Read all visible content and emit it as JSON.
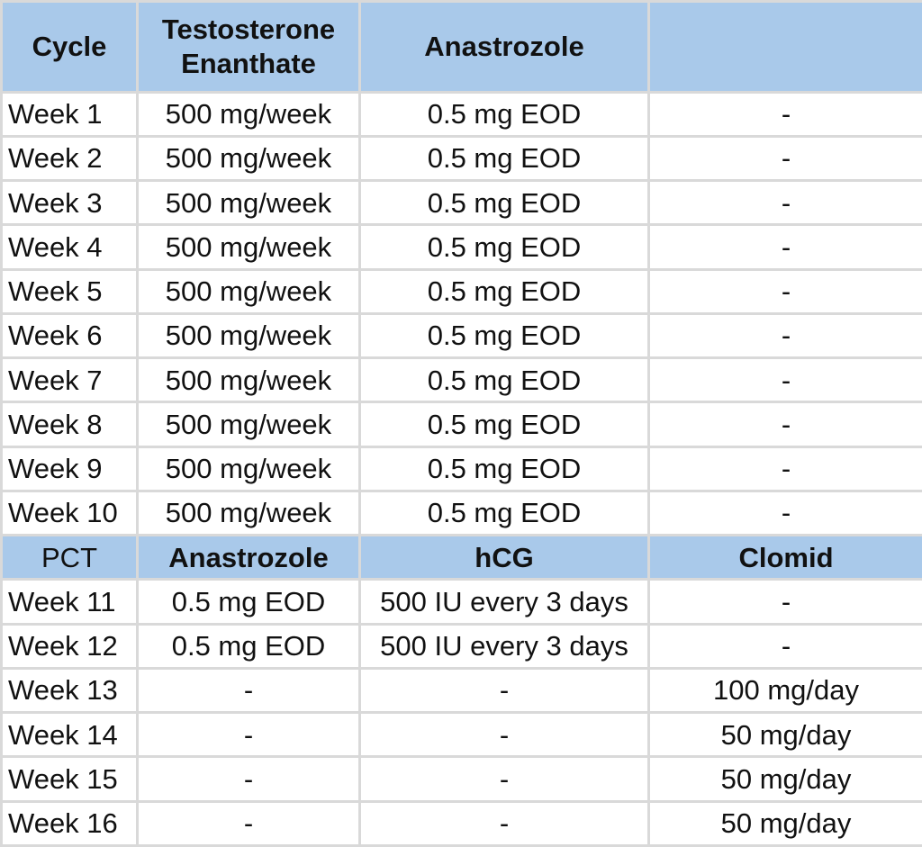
{
  "header": {
    "cycle": "Cycle",
    "col1": "Testosterone Enanthate",
    "col2": "Anastrozole",
    "col3": ""
  },
  "cycle_rows": [
    {
      "week": "Week 1",
      "test": "500 mg/week",
      "anastrozole": "0.5 mg EOD",
      "extra": "-"
    },
    {
      "week": "Week 2",
      "test": "500 mg/week",
      "anastrozole": "0.5 mg EOD",
      "extra": "-"
    },
    {
      "week": "Week 3",
      "test": "500 mg/week",
      "anastrozole": "0.5 mg EOD",
      "extra": "-"
    },
    {
      "week": "Week 4",
      "test": "500 mg/week",
      "anastrozole": "0.5 mg EOD",
      "extra": "-"
    },
    {
      "week": "Week 5",
      "test": "500 mg/week",
      "anastrozole": "0.5 mg EOD",
      "extra": "-"
    },
    {
      "week": "Week 6",
      "test": "500 mg/week",
      "anastrozole": "0.5 mg EOD",
      "extra": "-"
    },
    {
      "week": "Week 7",
      "test": "500 mg/week",
      "anastrozole": "0.5 mg EOD",
      "extra": "-"
    },
    {
      "week": "Week 8",
      "test": "500 mg/week",
      "anastrozole": "0.5 mg EOD",
      "extra": "-"
    },
    {
      "week": "Week 9",
      "test": "500 mg/week",
      "anastrozole": "0.5 mg EOD",
      "extra": "-"
    },
    {
      "week": "Week 10",
      "test": "500 mg/week",
      "anastrozole": "0.5 mg EOD",
      "extra": "-"
    }
  ],
  "pct_header": {
    "label": "PCT",
    "col1": "Anastrozole",
    "col2": "hCG",
    "col3": "Clomid"
  },
  "pct_rows": [
    {
      "week": "Week 11",
      "anastrozole": "0.5 mg EOD",
      "hcg": "500 IU every 3 days",
      "clomid": "-"
    },
    {
      "week": "Week 12",
      "anastrozole": "0.5 mg EOD",
      "hcg": "500 IU every 3 days",
      "clomid": "-"
    },
    {
      "week": "Week 13",
      "anastrozole": "-",
      "hcg": "-",
      "clomid": "100 mg/day"
    },
    {
      "week": "Week 14",
      "anastrozole": "-",
      "hcg": "-",
      "clomid": "50 mg/day"
    },
    {
      "week": "Week 15",
      "anastrozole": "-",
      "hcg": "-",
      "clomid": "50 mg/day"
    },
    {
      "week": "Week 16",
      "anastrozole": "-",
      "hcg": "-",
      "clomid": "50 mg/day"
    }
  ],
  "colors": {
    "header_fill": "#a9c9ea",
    "grid_line": "#d9d9d9",
    "cell_fill": "#ffffff",
    "text": "#111111"
  }
}
